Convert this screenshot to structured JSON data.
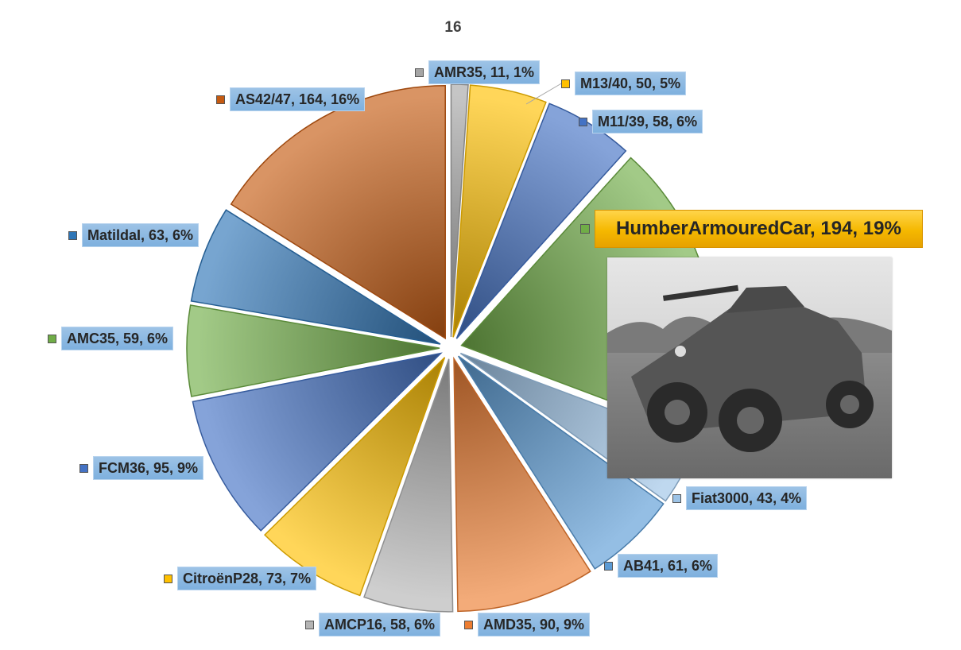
{
  "chart_data": {
    "type": "pie",
    "title": "16",
    "exploded": true,
    "data_labels": "category, value, percent",
    "legend": "none",
    "slices": [
      {
        "label": "AMR35, 11, 1%",
        "category": "AMR35",
        "value": 11,
        "percent": 1,
        "color": "#a5a5a5"
      },
      {
        "label": "M13/40, 50, 5%",
        "category": "M13/40",
        "value": 50,
        "percent": 5,
        "color": "#ffc000"
      },
      {
        "label": "M11/39, 58, 6%",
        "category": "M11/39",
        "value": 58,
        "percent": 6,
        "color": "#4472c4"
      },
      {
        "label": "HumberArmouredCar, 194, 19%",
        "category": "HumberArmouredCar",
        "value": 194,
        "percent": 19,
        "color": "#70ad47"
      },
      {
        "label": "Fiat3000, 43, 4%",
        "category": "Fiat3000",
        "value": 43,
        "percent": 4,
        "color": "#9dc3e6"
      },
      {
        "label": "AB41, 61, 6%",
        "category": "AB41",
        "value": 61,
        "percent": 6,
        "color": "#5b9bd5"
      },
      {
        "label": "AMD35, 90, 9%",
        "category": "AMD35",
        "value": 90,
        "percent": 9,
        "color": "#ed7d31"
      },
      {
        "label": "AMCP16, 58, 6%",
        "category": "AMCP16",
        "value": 58,
        "percent": 6,
        "color": "#b4b4b4"
      },
      {
        "label": "CitroënP28, 73, 7%",
        "category": "CitroënP28",
        "value": 73,
        "percent": 7,
        "color": "#ffc000"
      },
      {
        "label": "FCM36, 95, 9%",
        "category": "FCM36",
        "value": 95,
        "percent": 9,
        "color": "#4472c4"
      },
      {
        "label": "AMC35, 59, 6%",
        "category": "AMC35",
        "value": 59,
        "percent": 6,
        "color": "#70ad47"
      },
      {
        "label": "MatildaI, 63, 6%",
        "category": "MatildaI",
        "value": 63,
        "percent": 6,
        "color": "#2e75b6"
      },
      {
        "label": "AS42/47, 164, 16%",
        "category": "AS42/47",
        "value": 164,
        "percent": 16,
        "color": "#c55a11"
      }
    ],
    "highlighted": "HumberArmouredCar"
  }
}
